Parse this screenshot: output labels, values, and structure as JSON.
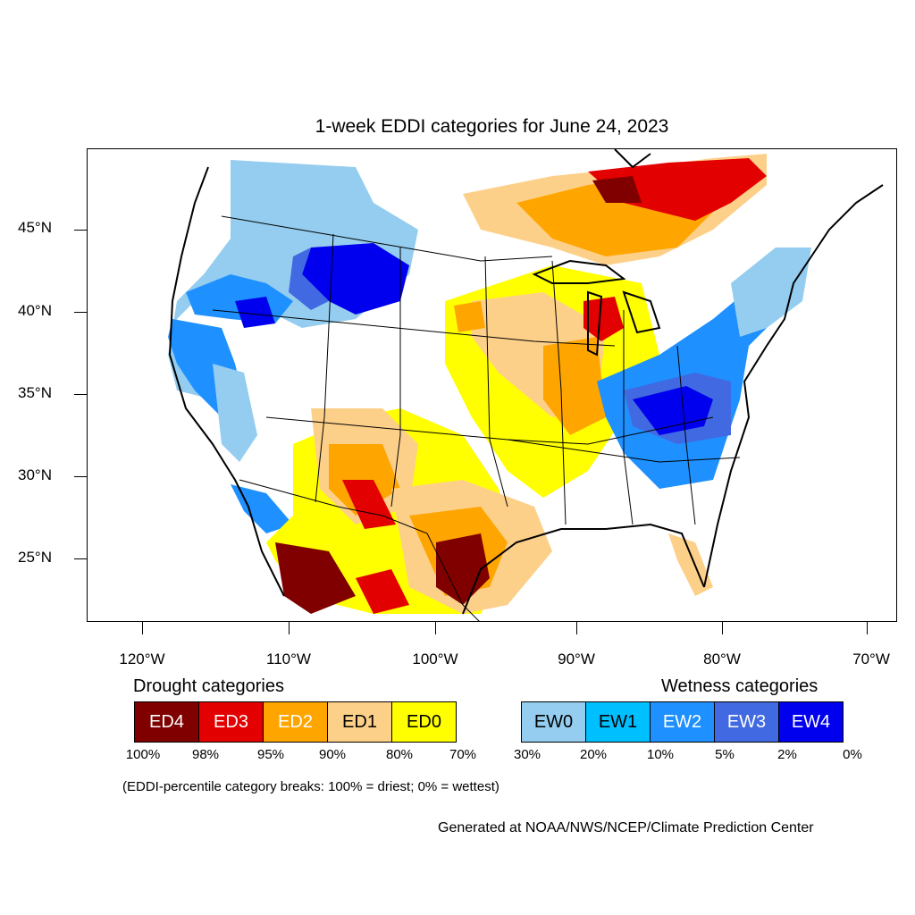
{
  "title": "1-week EDDI categories for June 24, 2023",
  "y_axis_labels": [
    "45°N",
    "40°N",
    "35°N",
    "30°N",
    "25°N"
  ],
  "x_axis_labels": [
    "120°W",
    "110°W",
    "100°W",
    "90°W",
    "80°W",
    "70°W"
  ],
  "legend": {
    "drought_heading": "Drought categories",
    "wetness_heading": "Wetness categories",
    "drought": [
      {
        "label": "ED4",
        "color": "#800000",
        "text_color": "#ffffff"
      },
      {
        "label": "ED3",
        "color": "#e30000",
        "text_color": "#ffffff"
      },
      {
        "label": "ED2",
        "color": "#ffa500",
        "text_color": "#ffffff"
      },
      {
        "label": "ED1",
        "color": "#fdd08a",
        "text_color": "#000000"
      },
      {
        "label": "ED0",
        "color": "#ffff00",
        "text_color": "#000000"
      }
    ],
    "wetness": [
      {
        "label": "EW0",
        "color": "#94cdef",
        "text_color": "#000000"
      },
      {
        "label": "EW1",
        "color": "#00bfff",
        "text_color": "#000000"
      },
      {
        "label": "EW2",
        "color": "#1e90ff",
        "text_color": "#ffffff"
      },
      {
        "label": "EW3",
        "color": "#4169e1",
        "text_color": "#ffffff"
      },
      {
        "label": "EW4",
        "color": "#0000ee",
        "text_color": "#ffffff"
      }
    ],
    "percentiles": [
      "100%",
      "98%",
      "95%",
      "90%",
      "80%",
      "70%",
      "30%",
      "20%",
      "10%",
      "5%",
      "2%",
      "0%"
    ]
  },
  "note": "(EDDI-percentile category breaks: 100% = driest; 0% = wettest)",
  "credit": "Generated at NOAA/NWS/NCEP/Climate Prediction Center"
}
